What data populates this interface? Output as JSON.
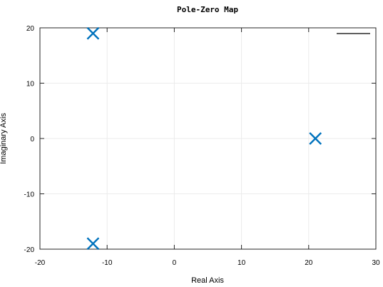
{
  "chart_data": {
    "type": "scatter",
    "title": "Pole-Zero Map",
    "xlabel": "Real Axis",
    "ylabel": "Imaginary Axis",
    "xlim": [
      -20,
      30
    ],
    "ylim": [
      -20,
      20
    ],
    "x_ticks": [
      -20,
      -10,
      0,
      10,
      20,
      30
    ],
    "y_ticks": [
      -20,
      -10,
      0,
      10,
      20
    ],
    "grid": true,
    "legend": "top-right, single entry with no visible text",
    "marker": "x",
    "series": [
      {
        "color": "#0072bd",
        "points": [
          {
            "x": -12.1,
            "y": 19
          },
          {
            "x": 21,
            "y": 0
          },
          {
            "x": -12.1,
            "y": -19
          }
        ]
      }
    ],
    "legend_line_color": "#000000"
  }
}
